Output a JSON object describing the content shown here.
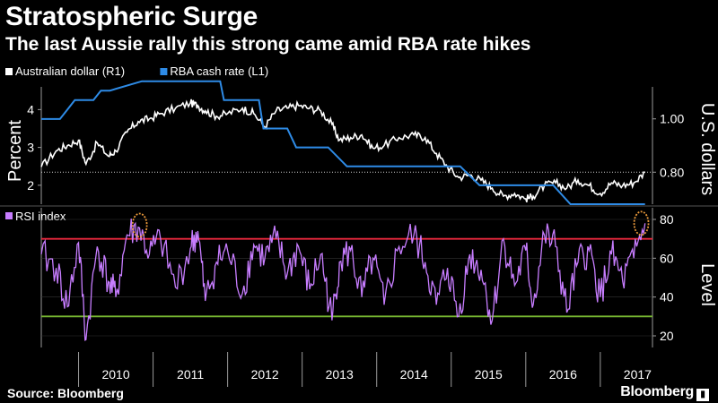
{
  "header": {
    "title": "Stratospheric Surge",
    "subtitle": "The last Aussie rally this strong came amid RBA rate hikes"
  },
  "footer": {
    "source": "Source: Bloomberg",
    "brand": "Bloomberg"
  },
  "colors": {
    "background": "#000000",
    "aud_line": "#ffffff",
    "cash_rate_line": "#2e8be6",
    "rsi_line": "#c77dff",
    "overbought_line": "#e8283c",
    "oversold_line": "#78b832",
    "highlight_circle": "#e8983a",
    "axis": "#9a9a9a"
  },
  "chart_data": [
    {
      "type": "line",
      "legend": [
        {
          "name": "Australian dollar (R1)",
          "color": "#ffffff"
        },
        {
          "name": "RBA cash rate (L1)",
          "color": "#2e8be6"
        }
      ],
      "ylabel_left": "Percent",
      "ylabel_right": "U.S. dollars",
      "left_ticks": [
        "4",
        "3",
        "2"
      ],
      "right_ticks": [
        "1.00",
        "0.80"
      ],
      "left_ylim": [
        1.5,
        4.6
      ],
      "right_ylim": [
        0.68,
        1.12
      ],
      "reference_line": {
        "axis": "right",
        "value": 0.8,
        "style": "dotted"
      },
      "series": [
        {
          "name": "Australian dollar (R1)",
          "axis": "right",
          "x": [
            2009.5,
            2009.7,
            2009.85,
            2010.0,
            2010.1,
            2010.25,
            2010.4,
            2010.5,
            2010.65,
            2010.8,
            2010.95,
            2011.1,
            2011.3,
            2011.5,
            2011.6,
            2011.7,
            2011.85,
            2012.0,
            2012.2,
            2012.35,
            2012.5,
            2012.65,
            2012.8,
            2012.95,
            2013.1,
            2013.25,
            2013.4,
            2013.5,
            2013.65,
            2013.8,
            2013.95,
            2014.1,
            2014.3,
            2014.5,
            2014.65,
            2014.8,
            2014.95,
            2015.1,
            2015.25,
            2015.4,
            2015.55,
            2015.7,
            2015.85,
            2016.0,
            2016.1,
            2016.25,
            2016.4,
            2016.55,
            2016.7,
            2016.85,
            2017.0,
            2017.15,
            2017.3,
            2017.45,
            2017.6
          ],
          "values": [
            0.82,
            0.88,
            0.9,
            0.92,
            0.83,
            0.91,
            0.86,
            0.88,
            0.95,
            0.99,
            1.0,
            1.02,
            1.04,
            1.06,
            1.05,
            1.03,
            1.01,
            1.02,
            1.04,
            1.02,
            0.97,
            1.03,
            1.04,
            1.05,
            1.04,
            1.03,
            0.98,
            0.92,
            0.93,
            0.94,
            0.89,
            0.9,
            0.93,
            0.94,
            0.93,
            0.87,
            0.82,
            0.78,
            0.79,
            0.77,
            0.74,
            0.71,
            0.72,
            0.7,
            0.71,
            0.75,
            0.76,
            0.74,
            0.77,
            0.75,
            0.72,
            0.76,
            0.75,
            0.76,
            0.8
          ]
        },
        {
          "name": "RBA cash rate (L1)",
          "axis": "left",
          "x": [
            2009.5,
            2009.75,
            2009.85,
            2009.95,
            2010.2,
            2010.3,
            2010.42,
            2010.85,
            2011.9,
            2011.95,
            2012.42,
            2012.48,
            2012.8,
            2012.92,
            2013.35,
            2013.6,
            2015.12,
            2015.38,
            2016.37,
            2016.6,
            2017.6
          ],
          "values": [
            3.75,
            3.75,
            4.0,
            4.25,
            4.25,
            4.5,
            4.5,
            4.75,
            4.75,
            4.25,
            4.25,
            3.5,
            3.5,
            3.0,
            3.0,
            2.5,
            2.5,
            2.0,
            2.0,
            1.5,
            1.5
          ]
        }
      ]
    },
    {
      "type": "line",
      "legend": [
        {
          "name": "RSI index",
          "color": "#c77dff"
        }
      ],
      "ylabel": "Level",
      "ticks": [
        "80",
        "60",
        "40",
        "20"
      ],
      "ylim": [
        14,
        86
      ],
      "reference_lines": [
        {
          "value": 70,
          "color": "#e8283c"
        },
        {
          "value": 30,
          "color": "#78b832"
        }
      ],
      "highlights": [
        {
          "x": 2010.82,
          "y": 77
        },
        {
          "x": 2017.55,
          "y": 78
        }
      ],
      "series": [
        {
          "name": "RSI index",
          "x": [
            2009.5,
            2009.7,
            2009.85,
            2010.0,
            2010.1,
            2010.25,
            2010.4,
            2010.5,
            2010.65,
            2010.8,
            2010.95,
            2011.1,
            2011.3,
            2011.5,
            2011.6,
            2011.7,
            2011.85,
            2012.0,
            2012.2,
            2012.35,
            2012.5,
            2012.65,
            2012.8,
            2012.95,
            2013.1,
            2013.25,
            2013.4,
            2013.5,
            2013.65,
            2013.8,
            2013.95,
            2014.1,
            2014.3,
            2014.5,
            2014.65,
            2014.8,
            2014.95,
            2015.1,
            2015.25,
            2015.4,
            2015.55,
            2015.7,
            2015.85,
            2016.0,
            2016.1,
            2016.25,
            2016.4,
            2016.55,
            2016.7,
            2016.85,
            2017.0,
            2017.15,
            2017.3,
            2017.45,
            2017.6
          ],
          "values": [
            62,
            55,
            35,
            68,
            18,
            66,
            48,
            40,
            72,
            76,
            62,
            70,
            45,
            65,
            74,
            38,
            58,
            64,
            42,
            67,
            60,
            70,
            52,
            66,
            44,
            62,
            28,
            58,
            64,
            40,
            60,
            36,
            66,
            72,
            58,
            36,
            55,
            30,
            62,
            54,
            28,
            70,
            46,
            64,
            36,
            72,
            66,
            32,
            58,
            64,
            40,
            62,
            48,
            60,
            78
          ]
        }
      ]
    }
  ],
  "x_axis": {
    "labels": [
      "2010",
      "2011",
      "2012",
      "2013",
      "2014",
      "2015",
      "2016",
      "2017"
    ],
    "range": [
      2009.5,
      2017.7
    ]
  }
}
